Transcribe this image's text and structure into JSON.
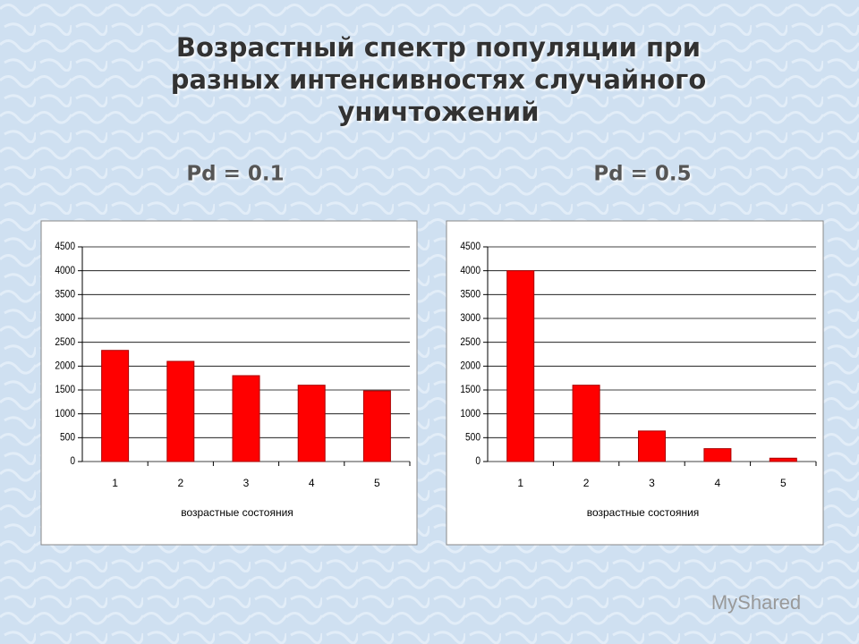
{
  "title": [
    "Возрастный спектр популяции при",
    "разных интенсивностях случайного",
    "уничтожений"
  ],
  "watermark": "MyShared",
  "chart_data": [
    {
      "type": "bar",
      "title": "Pd = 0.1",
      "x_label": "возрастные состояния",
      "categories": [
        "1",
        "2",
        "3",
        "4",
        "5"
      ],
      "values": [
        2330,
        2100,
        1800,
        1600,
        1480
      ],
      "color": "#ff0000",
      "ylim": [
        0,
        4500
      ],
      "yticks": [
        0,
        500,
        1000,
        1500,
        2000,
        2500,
        3000,
        3500,
        4000,
        4500
      ],
      "grid": true
    },
    {
      "type": "bar",
      "title": "Pd = 0.5",
      "x_label": "возрастные состояния",
      "categories": [
        "1",
        "2",
        "3",
        "4",
        "5"
      ],
      "values": [
        4000,
        1600,
        640,
        270,
        70
      ],
      "color": "#ff0000",
      "ylim": [
        0,
        4500
      ],
      "yticks": [
        0,
        500,
        1000,
        1500,
        2000,
        2500,
        3000,
        3500,
        4000,
        4500
      ],
      "grid": true
    }
  ]
}
